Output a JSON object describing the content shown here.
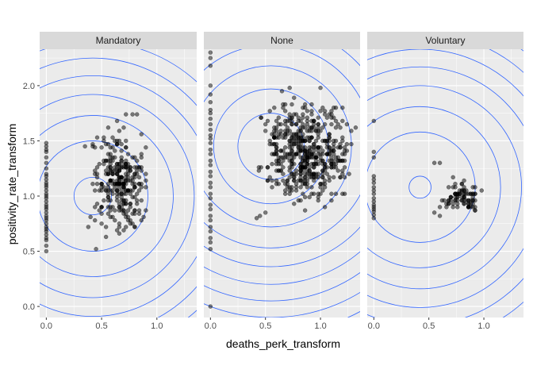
{
  "chart_data": {
    "type": "scatter",
    "title": "",
    "xlabel": "deaths_perk_transform",
    "ylabel": "positivity_rate_transform",
    "xlim": [
      -0.06,
      1.36
    ],
    "ylim": [
      -0.1,
      2.33
    ],
    "x_ticks": [
      0.0,
      0.5,
      1.0
    ],
    "x_tick_labels": [
      "0.0",
      "0.5",
      "1.0"
    ],
    "y_ticks": [
      0.0,
      0.5,
      1.0,
      1.5,
      2.0
    ],
    "y_tick_labels": [
      "0.0",
      "0.5",
      "1.0",
      "1.5",
      "2.0"
    ],
    "grid": true,
    "colors": {
      "panel_background": "#ebebeb",
      "strip_background": "#d9d9d9",
      "grid_major": "#ffffff",
      "contour": "#3366ff",
      "point": "#000000"
    },
    "point_opacity": 0.5,
    "panels": [
      {
        "label": "Mandatory",
        "contour_center": [
          0.42,
          1.0
        ],
        "contour_radii": [
          0.17,
          0.5,
          0.73,
          0.92,
          1.09,
          1.25,
          1.4
        ],
        "zero_column": {
          "x": 0.0,
          "y_values": [
            0.5,
            0.55,
            0.6,
            0.62,
            0.65,
            0.68,
            0.7,
            0.72,
            0.75,
            0.78,
            0.8,
            0.82,
            0.85,
            0.88,
            0.9,
            0.92,
            0.95,
            0.98,
            1.0,
            1.02,
            1.05,
            1.08,
            1.1,
            1.12,
            1.15,
            1.18,
            1.2,
            1.25,
            1.3,
            1.35,
            1.4,
            1.42,
            1.45,
            1.48
          ]
        },
        "cluster": {
          "x_range": [
            0.4,
            0.92
          ],
          "y_range": [
            0.52,
            1.74
          ],
          "count": 300
        },
        "extra_points": [
          [
            0.72,
            1.74
          ],
          [
            0.78,
            1.74
          ],
          [
            0.82,
            1.74
          ],
          [
            0.35,
            1.45
          ],
          [
            0.42,
            1.45
          ],
          [
            0.38,
            0.72
          ],
          [
            0.45,
            0.52
          ]
        ]
      },
      {
        "label": "None",
        "contour_center": [
          0.55,
          1.45
        ],
        "contour_radii": [
          0.3,
          0.52,
          0.73,
          0.92,
          1.09,
          1.25,
          1.4,
          1.55,
          1.7,
          1.85
        ],
        "zero_column": {
          "x": 0.0,
          "y_values": [
            0.0,
            0.52,
            0.58,
            0.62,
            0.68,
            0.72,
            0.78,
            0.82,
            0.88,
            0.92,
            0.98,
            1.02,
            1.08,
            1.12,
            1.18,
            1.22,
            1.28,
            1.32,
            1.38,
            1.42,
            1.48,
            1.52,
            1.55,
            1.6,
            1.65,
            1.7,
            1.75,
            1.78,
            1.85,
            1.92,
            2.0,
            2.18,
            2.25,
            2.3
          ]
        },
        "cluster": {
          "x_range": [
            0.4,
            1.32
          ],
          "y_range": [
            0.8,
            1.98
          ],
          "count": 520
        },
        "extra_points": [
          [
            0.65,
            1.95
          ],
          [
            0.72,
            1.98
          ],
          [
            1.0,
            1.98
          ],
          [
            1.2,
            1.8
          ],
          [
            1.32,
            1.62
          ],
          [
            0.45,
            0.82
          ],
          [
            0.5,
            0.85
          ],
          [
            0.42,
            0.8
          ]
        ]
      },
      {
        "label": "Voluntary",
        "contour_center": [
          0.42,
          1.08
        ],
        "contour_radii": [
          0.1,
          0.5,
          0.73,
          0.92,
          1.09,
          1.25,
          1.4,
          1.55,
          1.7
        ],
        "zero_column": {
          "x": 0.0,
          "y_values": [
            0.8,
            0.83,
            0.86,
            0.88,
            0.9,
            0.92,
            0.95,
            0.98,
            1.02,
            1.05,
            1.08,
            1.12,
            1.15,
            1.18,
            1.35,
            1.4,
            1.68
          ]
        },
        "cluster": {
          "x_range": [
            0.6,
            1.0
          ],
          "y_range": [
            0.82,
            1.18
          ],
          "count": 90
        },
        "extra_points": [
          [
            0.55,
            1.3
          ],
          [
            0.6,
            1.3
          ],
          [
            0.55,
            0.85
          ],
          [
            0.6,
            0.82
          ],
          [
            0.6,
            0.9
          ]
        ]
      }
    ]
  }
}
